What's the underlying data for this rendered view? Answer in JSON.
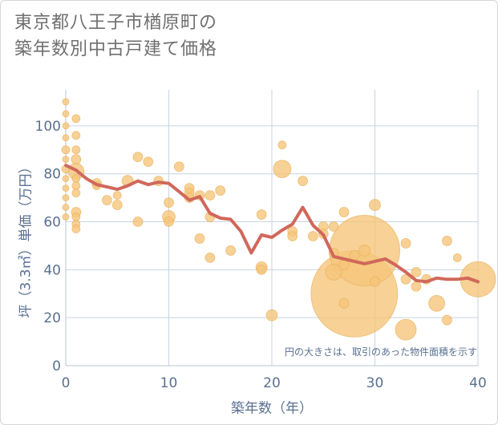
{
  "title_line1": "東京都八王子市楢原町の",
  "title_line2": "築年数別中古戸建て価格",
  "note": "円の大きさは、取引のあった物件面積を示す",
  "chart_data": {
    "type": "scatter",
    "title": "東京都八王子市楢原町の築年数別中古戸建て価格",
    "xlabel": "築年数（年）",
    "ylabel": "坪（3.3㎡）単価（万円）",
    "xlim": [
      0,
      40
    ],
    "ylim": [
      0,
      115
    ],
    "x_ticks": [
      "0",
      "10",
      "20",
      "30",
      "40"
    ],
    "y_ticks": [
      "0",
      "20",
      "40",
      "60",
      "80",
      "100"
    ],
    "grid": true,
    "colors": {
      "bubble": "#f5c57a",
      "line": "#d0685b",
      "axis_text": "#5a7090",
      "grid": "#c8d3e0"
    },
    "series": [
      {
        "kind": "bubble",
        "points": [
          {
            "x": 0,
            "y": 110,
            "s": 4
          },
          {
            "x": 0,
            "y": 105,
            "s": 4
          },
          {
            "x": 0,
            "y": 100,
            "s": 4
          },
          {
            "x": 0,
            "y": 95,
            "s": 4
          },
          {
            "x": 0,
            "y": 90,
            "s": 5
          },
          {
            "x": 0,
            "y": 86,
            "s": 4
          },
          {
            "x": 0,
            "y": 82,
            "s": 5
          },
          {
            "x": 0,
            "y": 78,
            "s": 4
          },
          {
            "x": 0,
            "y": 74,
            "s": 4
          },
          {
            "x": 0,
            "y": 70,
            "s": 4
          },
          {
            "x": 0,
            "y": 66,
            "s": 4
          },
          {
            "x": 0,
            "y": 62,
            "s": 4
          },
          {
            "x": 1,
            "y": 103,
            "s": 5
          },
          {
            "x": 1,
            "y": 96,
            "s": 5
          },
          {
            "x": 1,
            "y": 90,
            "s": 5
          },
          {
            "x": 1,
            "y": 86,
            "s": 6
          },
          {
            "x": 1,
            "y": 81,
            "s": 10
          },
          {
            "x": 1,
            "y": 78,
            "s": 5
          },
          {
            "x": 1,
            "y": 75,
            "s": 5
          },
          {
            "x": 1,
            "y": 72,
            "s": 5
          },
          {
            "x": 1,
            "y": 64,
            "s": 6
          },
          {
            "x": 1,
            "y": 62,
            "s": 5
          },
          {
            "x": 1,
            "y": 59,
            "s": 5
          },
          {
            "x": 1,
            "y": 57,
            "s": 5
          },
          {
            "x": 3,
            "y": 76,
            "s": 6
          },
          {
            "x": 3,
            "y": 75,
            "s": 5
          },
          {
            "x": 4,
            "y": 69,
            "s": 6
          },
          {
            "x": 5,
            "y": 67,
            "s": 6
          },
          {
            "x": 5,
            "y": 71,
            "s": 5
          },
          {
            "x": 6,
            "y": 77,
            "s": 7
          },
          {
            "x": 7,
            "y": 87,
            "s": 6
          },
          {
            "x": 7,
            "y": 60,
            "s": 6
          },
          {
            "x": 8,
            "y": 85,
            "s": 6
          },
          {
            "x": 9,
            "y": 77,
            "s": 6
          },
          {
            "x": 10,
            "y": 68,
            "s": 6
          },
          {
            "x": 10,
            "y": 62,
            "s": 8
          },
          {
            "x": 10,
            "y": 60,
            "s": 6
          },
          {
            "x": 11,
            "y": 83,
            "s": 6
          },
          {
            "x": 12,
            "y": 74,
            "s": 6
          },
          {
            "x": 12,
            "y": 72,
            "s": 6
          },
          {
            "x": 12,
            "y": 70,
            "s": 6
          },
          {
            "x": 13,
            "y": 71,
            "s": 6
          },
          {
            "x": 13,
            "y": 53,
            "s": 6
          },
          {
            "x": 14,
            "y": 62,
            "s": 6
          },
          {
            "x": 14,
            "y": 45,
            "s": 6
          },
          {
            "x": 14,
            "y": 71,
            "s": 6
          },
          {
            "x": 15,
            "y": 73,
            "s": 6
          },
          {
            "x": 16,
            "y": 48,
            "s": 6
          },
          {
            "x": 19,
            "y": 63,
            "s": 6
          },
          {
            "x": 19,
            "y": 41,
            "s": 7
          },
          {
            "x": 19,
            "y": 40,
            "s": 6
          },
          {
            "x": 20,
            "y": 21,
            "s": 7
          },
          {
            "x": 21,
            "y": 92,
            "s": 5
          },
          {
            "x": 21,
            "y": 82,
            "s": 11
          },
          {
            "x": 22,
            "y": 56,
            "s": 6
          },
          {
            "x": 22,
            "y": 54,
            "s": 6
          },
          {
            "x": 23,
            "y": 77,
            "s": 6
          },
          {
            "x": 24,
            "y": 54,
            "s": 6
          },
          {
            "x": 25,
            "y": 58,
            "s": 6
          },
          {
            "x": 25,
            "y": 55,
            "s": 6
          },
          {
            "x": 26,
            "y": 39,
            "s": 10
          },
          {
            "x": 26,
            "y": 47,
            "s": 6
          },
          {
            "x": 26,
            "y": 58,
            "s": 6
          },
          {
            "x": 27,
            "y": 64,
            "s": 6
          },
          {
            "x": 27,
            "y": 26,
            "s": 6
          },
          {
            "x": 27,
            "y": 42,
            "s": 6
          },
          {
            "x": 28,
            "y": 30,
            "s": 54
          },
          {
            "x": 28,
            "y": 46,
            "s": 6
          },
          {
            "x": 29,
            "y": 48,
            "s": 44
          },
          {
            "x": 29,
            "y": 48,
            "s": 7
          },
          {
            "x": 30,
            "y": 67,
            "s": 7
          },
          {
            "x": 30,
            "y": 35,
            "s": 6
          },
          {
            "x": 33,
            "y": 51,
            "s": 6
          },
          {
            "x": 33,
            "y": 15,
            "s": 13
          },
          {
            "x": 33,
            "y": 36,
            "s": 6
          },
          {
            "x": 34,
            "y": 39,
            "s": 6
          },
          {
            "x": 34,
            "y": 33,
            "s": 6
          },
          {
            "x": 35,
            "y": 36,
            "s": 6
          },
          {
            "x": 36,
            "y": 26,
            "s": 10
          },
          {
            "x": 37,
            "y": 52,
            "s": 6
          },
          {
            "x": 37,
            "y": 19,
            "s": 6
          },
          {
            "x": 38,
            "y": 45,
            "s": 5
          },
          {
            "x": 40,
            "y": 36,
            "s": 22
          }
        ]
      },
      {
        "kind": "line",
        "points": [
          {
            "x": 0,
            "y": 83.5
          },
          {
            "x": 1,
            "y": 81.5
          },
          {
            "x": 2,
            "y": 78
          },
          {
            "x": 3,
            "y": 75.5
          },
          {
            "x": 4,
            "y": 74.5
          },
          {
            "x": 5,
            "y": 73.5
          },
          {
            "x": 6,
            "y": 75
          },
          {
            "x": 7,
            "y": 77
          },
          {
            "x": 8,
            "y": 75.5
          },
          {
            "x": 9,
            "y": 76.5
          },
          {
            "x": 10,
            "y": 76
          },
          {
            "x": 11,
            "y": 72.5
          },
          {
            "x": 12,
            "y": 69
          },
          {
            "x": 13,
            "y": 70.5
          },
          {
            "x": 14,
            "y": 63.5
          },
          {
            "x": 15,
            "y": 61.5
          },
          {
            "x": 16,
            "y": 61
          },
          {
            "x": 17,
            "y": 56
          },
          {
            "x": 18,
            "y": 47
          },
          {
            "x": 19,
            "y": 54.5
          },
          {
            "x": 20,
            "y": 53.5
          },
          {
            "x": 21,
            "y": 56.5
          },
          {
            "x": 22,
            "y": 59
          },
          {
            "x": 23,
            "y": 66
          },
          {
            "x": 24,
            "y": 58.5
          },
          {
            "x": 25,
            "y": 54.5
          },
          {
            "x": 26,
            "y": 45.5
          },
          {
            "x": 27,
            "y": 44.5
          },
          {
            "x": 28,
            "y": 43.5
          },
          {
            "x": 29,
            "y": 42.5
          },
          {
            "x": 30,
            "y": 43.5
          },
          {
            "x": 31,
            "y": 44.5
          },
          {
            "x": 32,
            "y": 42
          },
          {
            "x": 33,
            "y": 39
          },
          {
            "x": 34,
            "y": 35.5
          },
          {
            "x": 35,
            "y": 35
          },
          {
            "x": 36,
            "y": 36.5
          },
          {
            "x": 37,
            "y": 36
          },
          {
            "x": 38,
            "y": 36
          },
          {
            "x": 39,
            "y": 36.5
          },
          {
            "x": 40,
            "y": 35
          }
        ]
      }
    ]
  }
}
